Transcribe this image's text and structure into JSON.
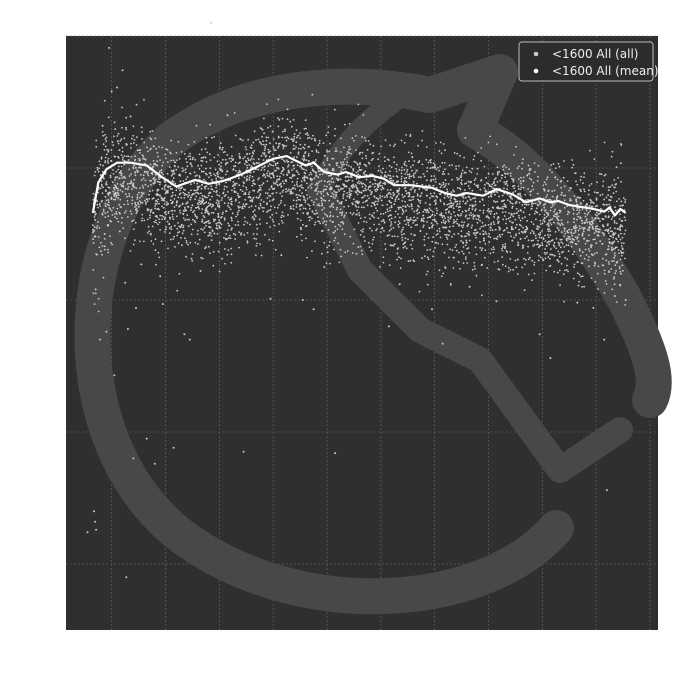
{
  "colors": {
    "page_background": "#ffffff",
    "plot_background": "#2f2f2f",
    "grid": "#6a6a6a",
    "watermark": "#484848",
    "series_all": "#c8c8c8",
    "series_mean": "#ffffff",
    "legend_background": "#2c2c2c",
    "legend_border": "#bdbdbd"
  },
  "watermark": {
    "icon": "chess-knight-logo-icon"
  },
  "chart_data": {
    "type": "scatter",
    "title": "",
    "xlabel": "",
    "ylabel": "",
    "xlim": [
      0,
      1100
    ],
    "ylim": [
      -35,
      10
    ],
    "grid": true,
    "x_gridlines": [
      85,
      185,
      285,
      385,
      485,
      585,
      685,
      785,
      885,
      985,
      1085
    ],
    "y_gridlines": [
      -30,
      -20,
      -10,
      0,
      10
    ],
    "legend": {
      "position": "top-right",
      "entries": [
        {
          "label": "<1600 All (all)",
          "marker": "dot",
          "color": "#c8c8c8"
        },
        {
          "label": "<1600 All (mean)",
          "marker": "dot",
          "color": "#ffffff"
        }
      ]
    },
    "series": [
      {
        "label": "<1600 All (all)",
        "kind": "scatter",
        "note": "dense cloud of individual points; x from 50 to 1040, mostly between -10.5 and +1.5",
        "points": [
          [
            55,
            -9.2
          ],
          [
            60,
            -1.4
          ],
          [
            63,
            -13.0
          ],
          [
            65,
            -6.3
          ],
          [
            68,
            3.2
          ],
          [
            72,
            -5.0
          ],
          [
            75,
            -12.4
          ],
          [
            80,
            9.1
          ],
          [
            85,
            5.8
          ],
          [
            90,
            -15.7
          ],
          [
            95,
            6.1
          ],
          [
            100,
            -4.8
          ],
          [
            105,
            7.4
          ],
          [
            110,
            -8.7
          ],
          [
            115,
            -12.2
          ],
          [
            120,
            3.9
          ],
          [
            125,
            -22.0
          ],
          [
            130,
            -10.6
          ],
          [
            140,
            -7.3
          ],
          [
            150,
            -20.5
          ],
          [
            165,
            -22.4
          ],
          [
            175,
            -8.2
          ],
          [
            180,
            -10.3
          ],
          [
            200,
            -21.2
          ],
          [
            220,
            -12.6
          ],
          [
            230,
            -13.0
          ],
          [
            250,
            -7.8
          ],
          [
            260,
            -4.1
          ],
          [
            270,
            11.0
          ],
          [
            300,
            4.0
          ],
          [
            330,
            -21.5
          ],
          [
            380,
            -9.9
          ],
          [
            400,
            -6.6
          ],
          [
            440,
            -10.0
          ],
          [
            460,
            -10.7
          ],
          [
            480,
            -7.5
          ],
          [
            500,
            -21.6
          ],
          [
            600,
            -12.0
          ],
          [
            620,
            -8.8
          ],
          [
            680,
            -10.7
          ],
          [
            700,
            -13.3
          ],
          [
            750,
            -9.0
          ],
          [
            800,
            -10.1
          ],
          [
            880,
            -12.6
          ],
          [
            900,
            -14.4
          ],
          [
            950,
            -10.2
          ],
          [
            980,
            -10.6
          ],
          [
            1000,
            -13.0
          ],
          [
            1020,
            -9.7
          ],
          [
            1030,
            -8.9
          ],
          [
            1040,
            -10.0
          ],
          [
            1005,
            -24.4
          ],
          [
            52,
            -26.0
          ],
          [
            54,
            -26.8
          ],
          [
            56,
            -27.4
          ],
          [
            40,
            -27.6
          ],
          [
            112,
            -31.0
          ]
        ]
      },
      {
        "label": "<1600 All (mean)",
        "kind": "line",
        "x": [
          50,
          60,
          75,
          95,
          120,
          150,
          175,
          205,
          240,
          265,
          290,
          305,
          330,
          355,
          385,
          410,
          425,
          445,
          460,
          480,
          505,
          520,
          545,
          570,
          590,
          610,
          640,
          660,
          680,
          705,
          725,
          745,
          775,
          800,
          830,
          855,
          880,
          900,
          915,
          935,
          950,
          980,
          1000,
          1010,
          1020,
          1030,
          1040
        ],
        "y": [
          -3.4,
          -1.1,
          -0.1,
          0.4,
          0.4,
          0.2,
          -0.6,
          -1.4,
          -0.9,
          -1.2,
          -1.0,
          -0.8,
          -0.4,
          0.1,
          0.7,
          0.9,
          0.6,
          0.2,
          0.4,
          -0.3,
          -0.5,
          -0.3,
          -0.7,
          -0.6,
          -0.8,
          -1.3,
          -1.3,
          -1.4,
          -1.5,
          -1.9,
          -2.1,
          -1.9,
          -2.1,
          -1.6,
          -2.0,
          -2.6,
          -2.3,
          -2.6,
          -2.5,
          -2.8,
          -2.9,
          -3.1,
          -3.3,
          -3.0,
          -3.6,
          -3.1,
          -3.4
        ]
      }
    ]
  }
}
